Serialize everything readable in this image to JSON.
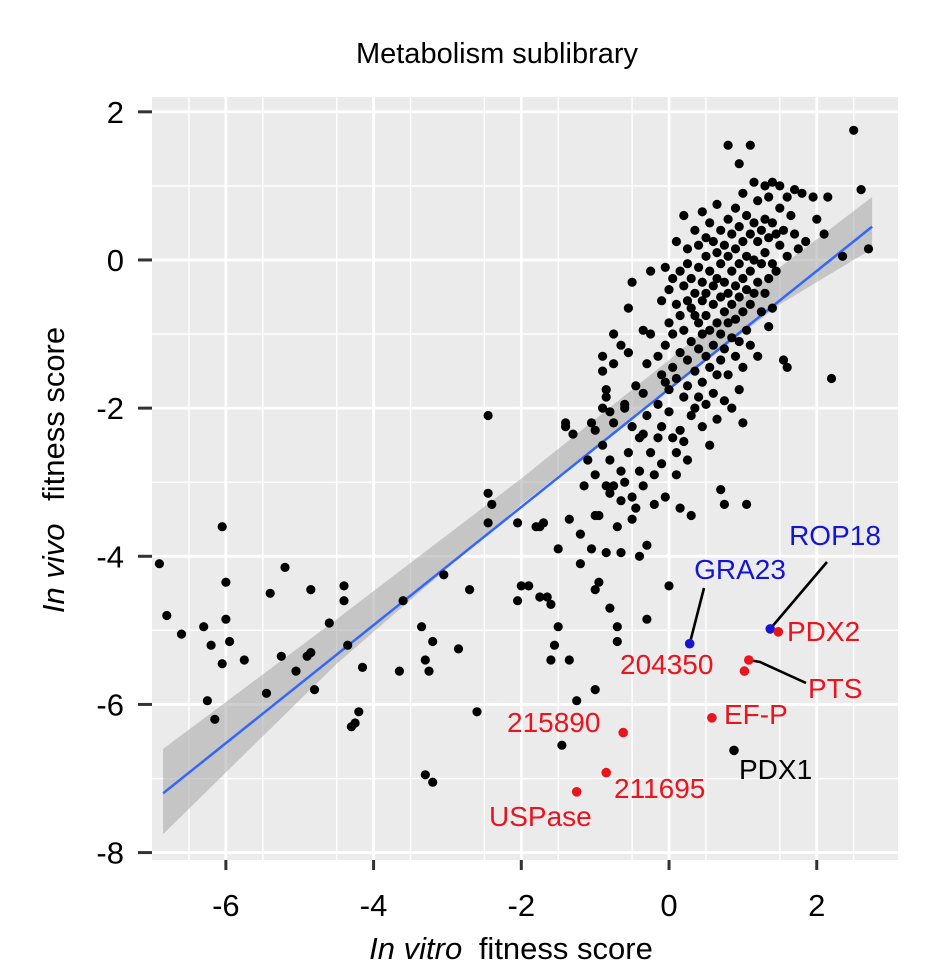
{
  "chart_data": {
    "type": "scatter",
    "title": "Metabolism sublibrary",
    "xlabel": {
      "italic": "In vitro",
      "rest": "fitness score"
    },
    "ylabel": {
      "italic": "In vivo",
      "rest": "fitness score"
    },
    "xlim": [
      -7,
      3.1
    ],
    "ylim": [
      -8.1,
      2.2
    ],
    "xticks": [
      -6,
      -4,
      -2,
      0,
      2
    ],
    "xtick_labels": [
      "-6",
      "-4",
      "-2",
      "0",
      "2"
    ],
    "yticks": [
      2,
      0,
      -2,
      -4,
      -6,
      -8
    ],
    "ytick_labels": [
      "2",
      "0",
      "-2",
      "-4",
      "-6",
      "-8"
    ],
    "grid": true,
    "colors": {
      "panel": "#ebebeb",
      "grid": "#ffffff",
      "points": "#000000",
      "fit": "#3366ff",
      "ribbon": "#a6a6a6",
      "red": "#e8141e",
      "blue": "#1414d2"
    },
    "fit_line": {
      "x": [
        -6.85,
        2.75
      ],
      "y": [
        -7.2,
        0.45
      ],
      "ribbon": [
        [
          -6.85,
          -7.75,
          -6.6
        ],
        [
          -4.5,
          -5.45,
          -4.85
        ],
        [
          -2.0,
          -3.3,
          -2.95
        ],
        [
          0.0,
          -1.75,
          -1.35
        ],
        [
          1.5,
          -0.6,
          -0.1
        ],
        [
          2.75,
          0.15,
          0.85
        ]
      ]
    },
    "points": [
      [
        -6.9,
        -4.1
      ],
      [
        -6.8,
        -4.8
      ],
      [
        -6.6,
        -5.05
      ],
      [
        -6.3,
        -4.95
      ],
      [
        -6.25,
        -5.95
      ],
      [
        -6.2,
        -5.2
      ],
      [
        -6.15,
        -6.2
      ],
      [
        -6.05,
        -3.6
      ],
      [
        -6.05,
        -5.45
      ],
      [
        -6.0,
        -4.35
      ],
      [
        -6.0,
        -4.85
      ],
      [
        -5.95,
        -5.15
      ],
      [
        -5.75,
        -5.4
      ],
      [
        -5.45,
        -5.85
      ],
      [
        -5.4,
        -4.5
      ],
      [
        -5.2,
        -4.15
      ],
      [
        -5.25,
        -5.35
      ],
      [
        -5.05,
        -5.55
      ],
      [
        -4.9,
        -5.35
      ],
      [
        -4.85,
        -5.3
      ],
      [
        -4.85,
        -4.45
      ],
      [
        -4.8,
        -5.8
      ],
      [
        -4.6,
        -4.9
      ],
      [
        -4.4,
        -4.4
      ],
      [
        -4.4,
        -4.6
      ],
      [
        -4.35,
        -5.2
      ],
      [
        -4.3,
        -6.3
      ],
      [
        -4.25,
        -6.25
      ],
      [
        -4.2,
        -6.1
      ],
      [
        -4.15,
        -5.5
      ],
      [
        -3.65,
        -5.55
      ],
      [
        -3.6,
        -4.6
      ],
      [
        -3.35,
        -4.95
      ],
      [
        -3.3,
        -5.4
      ],
      [
        -3.3,
        -6.95
      ],
      [
        -3.25,
        -5.55
      ],
      [
        -3.2,
        -7.05
      ],
      [
        -3.2,
        -5.15
      ],
      [
        -3.05,
        -4.25
      ],
      [
        -2.85,
        -5.25
      ],
      [
        -2.7,
        -4.45
      ],
      [
        -2.6,
        -6.1
      ],
      [
        -2.45,
        -2.1
      ],
      [
        -2.45,
        -3.15
      ],
      [
        -2.45,
        -3.55
      ],
      [
        -2.4,
        -3.3
      ],
      [
        -2.05,
        -4.6
      ],
      [
        -2.05,
        -3.55
      ],
      [
        -2.0,
        -4.4
      ],
      [
        -1.9,
        -4.4
      ],
      [
        -1.8,
        -3.6
      ],
      [
        -1.75,
        -3.6
      ],
      [
        -1.75,
        -4.55
      ],
      [
        -1.7,
        -3.55
      ],
      [
        -1.65,
        -4.55
      ],
      [
        -1.6,
        -5.4
      ],
      [
        -1.6,
        -4.65
      ],
      [
        -1.55,
        -5.2
      ],
      [
        -1.5,
        -4.95
      ],
      [
        -1.5,
        -3.9
      ],
      [
        -1.45,
        -6.55
      ],
      [
        -1.4,
        -2.2
      ],
      [
        -1.4,
        -2.25
      ],
      [
        -1.35,
        -5.4
      ],
      [
        -1.35,
        -3.5
      ],
      [
        -1.3,
        -2.35
      ],
      [
        -1.25,
        -5.95
      ],
      [
        -1.2,
        -3.7
      ],
      [
        -1.2,
        -4.1
      ],
      [
        -1.15,
        -3.05
      ],
      [
        -1.1,
        -2.7
      ],
      [
        -1.05,
        -2.2
      ],
      [
        -1.05,
        -3.9
      ],
      [
        -1.0,
        -2.3
      ],
      [
        -1.0,
        -2.9
      ],
      [
        -1.0,
        -3.45
      ],
      [
        -1.0,
        -5.8
      ],
      [
        -1.0,
        -4.45
      ],
      [
        -0.95,
        -3.45
      ],
      [
        -0.95,
        -4.35
      ],
      [
        -0.9,
        -1.3
      ],
      [
        -0.9,
        -1.5
      ],
      [
        -0.9,
        -2.0
      ],
      [
        -0.9,
        -2.5
      ],
      [
        -0.85,
        -3.05
      ],
      [
        -0.85,
        -3.95
      ],
      [
        -0.85,
        -1.75
      ],
      [
        -0.85,
        -1.85
      ],
      [
        -0.8,
        -2.05
      ],
      [
        -0.8,
        -2.7
      ],
      [
        -0.8,
        -3.15
      ],
      [
        -0.8,
        -4.7
      ],
      [
        -0.75,
        -1.0
      ],
      [
        -0.75,
        -1.4
      ],
      [
        -0.75,
        -2.2
      ],
      [
        -0.75,
        -3.05
      ],
      [
        -0.7,
        -3.6
      ],
      [
        -0.7,
        -4.95
      ],
      [
        -0.7,
        -5.15
      ],
      [
        -0.65,
        -1.15
      ],
      [
        -0.65,
        -2.85
      ],
      [
        -0.65,
        -3.25
      ],
      [
        -0.65,
        -3.95
      ],
      [
        -0.6,
        -2.0
      ],
      [
        -0.6,
        -3.0
      ],
      [
        -0.6,
        -1.95
      ],
      [
        -0.55,
        -0.65
      ],
      [
        -0.55,
        -1.25
      ],
      [
        -0.55,
        -2.6
      ],
      [
        -0.5,
        -3.2
      ],
      [
        -0.5,
        -3.5
      ],
      [
        -0.5,
        -0.3
      ],
      [
        -0.5,
        -2.25
      ],
      [
        -0.45,
        -1.7
      ],
      [
        -0.45,
        -3.35
      ],
      [
        -0.4,
        -2.4
      ],
      [
        -0.4,
        -2.85
      ],
      [
        -0.4,
        -4.0
      ],
      [
        -0.35,
        -0.95
      ],
      [
        -0.35,
        -1.8
      ],
      [
        -0.35,
        -2.35
      ],
      [
        -0.35,
        -3.05
      ],
      [
        -0.3,
        -4.85
      ],
      [
        -0.3,
        -1.4
      ],
      [
        -0.3,
        -2.1
      ],
      [
        -0.3,
        -3.85
      ],
      [
        -0.25,
        -1.0
      ],
      [
        -0.25,
        -2.6
      ],
      [
        -0.25,
        -0.15
      ],
      [
        -0.2,
        -2.9
      ],
      [
        -0.2,
        -3.3
      ],
      [
        -0.15,
        -1.3
      ],
      [
        -0.15,
        -2.4
      ],
      [
        -0.15,
        -1.95
      ],
      [
        -0.1,
        -0.55
      ],
      [
        -0.1,
        -1.55
      ],
      [
        -0.1,
        -2.25
      ],
      [
        -0.1,
        -2.75
      ],
      [
        -0.05,
        -0.1
      ],
      [
        -0.05,
        -1.15
      ],
      [
        -0.05,
        -1.65
      ],
      [
        -0.05,
        -3.2
      ],
      [
        0.0,
        -0.4
      ],
      [
        0.0,
        -0.85
      ],
      [
        0.0,
        -1.75
      ],
      [
        0.0,
        -2.05
      ],
      [
        0.0,
        -4.4
      ],
      [
        0.05,
        -0.25
      ],
      [
        0.05,
        -1.0
      ],
      [
        0.05,
        -1.45
      ],
      [
        0.05,
        -2.4
      ],
      [
        0.1,
        0.25
      ],
      [
        0.1,
        -0.6
      ],
      [
        0.1,
        -1.6
      ],
      [
        0.1,
        -2.6
      ],
      [
        0.1,
        -2.9
      ],
      [
        0.15,
        -0.15
      ],
      [
        0.15,
        -0.75
      ],
      [
        0.15,
        -1.25
      ],
      [
        0.15,
        -2.3
      ],
      [
        0.15,
        -3.35
      ],
      [
        0.2,
        0.6
      ],
      [
        0.2,
        -0.35
      ],
      [
        0.2,
        -0.95
      ],
      [
        0.2,
        -1.85
      ],
      [
        0.2,
        -2.45
      ],
      [
        0.25,
        0.15
      ],
      [
        0.25,
        -0.05
      ],
      [
        0.25,
        -0.55
      ],
      [
        0.25,
        -1.35
      ],
      [
        0.25,
        -1.7
      ],
      [
        0.25,
        -2.7
      ],
      [
        0.3,
        -0.25
      ],
      [
        0.3,
        -0.65
      ],
      [
        0.3,
        -1.1
      ],
      [
        0.3,
        -2.1
      ],
      [
        0.3,
        -3.45
      ],
      [
        0.35,
        0.4
      ],
      [
        0.35,
        -0.45
      ],
      [
        0.35,
        -0.75
      ],
      [
        0.35,
        -1.5
      ],
      [
        0.35,
        -2.0
      ],
      [
        0.4,
        0.2
      ],
      [
        0.4,
        -0.1
      ],
      [
        0.4,
        -0.85
      ],
      [
        0.4,
        -1.2
      ],
      [
        0.4,
        -1.85
      ],
      [
        0.45,
        0.65
      ],
      [
        0.45,
        -0.3
      ],
      [
        0.45,
        -0.55
      ],
      [
        0.45,
        -1.0
      ],
      [
        0.45,
        -1.65
      ],
      [
        0.45,
        -2.25
      ],
      [
        0.5,
        0.05
      ],
      [
        0.5,
        0.3
      ],
      [
        0.5,
        -0.45
      ],
      [
        0.5,
        -0.75
      ],
      [
        0.5,
        -1.3
      ],
      [
        0.5,
        -1.95
      ],
      [
        0.55,
        0.5
      ],
      [
        0.55,
        -0.15
      ],
      [
        0.55,
        -0.95
      ],
      [
        0.55,
        -1.45
      ],
      [
        0.55,
        -2.5
      ],
      [
        0.6,
        0.25
      ],
      [
        0.6,
        -0.35
      ],
      [
        0.6,
        -0.6
      ],
      [
        0.6,
        -1.15
      ],
      [
        0.6,
        -1.8
      ],
      [
        0.65,
        0.75
      ],
      [
        0.65,
        0.1
      ],
      [
        0.65,
        -0.25
      ],
      [
        0.65,
        -0.85
      ],
      [
        0.65,
        -1.55
      ],
      [
        0.65,
        -2.15
      ],
      [
        0.7,
        0.4
      ],
      [
        0.7,
        -0.05
      ],
      [
        0.7,
        -0.5
      ],
      [
        0.7,
        -1.0
      ],
      [
        0.7,
        -1.35
      ],
      [
        0.7,
        -3.1
      ],
      [
        0.75,
        0.2
      ],
      [
        0.75,
        -0.3
      ],
      [
        0.75,
        -0.7
      ],
      [
        0.75,
        -1.2
      ],
      [
        0.75,
        -1.9
      ],
      [
        0.75,
        -3.3
      ],
      [
        0.8,
        1.55
      ],
      [
        0.8,
        0.55
      ],
      [
        0.8,
        0.05
      ],
      [
        0.8,
        -0.45
      ],
      [
        0.8,
        -0.85
      ],
      [
        0.8,
        -1.55
      ],
      [
        0.85,
        0.35
      ],
      [
        0.85,
        -0.15
      ],
      [
        0.85,
        -0.6
      ],
      [
        0.85,
        -1.05
      ],
      [
        0.85,
        -2.0
      ],
      [
        0.9,
        0.7
      ],
      [
        0.9,
        0.15
      ],
      [
        0.9,
        -0.35
      ],
      [
        0.9,
        -0.8
      ],
      [
        0.9,
        -1.3
      ],
      [
        0.95,
        1.3
      ],
      [
        0.95,
        0.45
      ],
      [
        0.95,
        -0.05
      ],
      [
        0.95,
        -0.5
      ],
      [
        0.95,
        -1.1
      ],
      [
        0.95,
        -1.75
      ],
      [
        1.0,
        0.9
      ],
      [
        1.0,
        0.25
      ],
      [
        1.0,
        -0.25
      ],
      [
        1.0,
        -0.7
      ],
      [
        1.0,
        -1.45
      ],
      [
        1.0,
        -2.2
      ],
      [
        1.05,
        0.6
      ],
      [
        1.05,
        0.05
      ],
      [
        1.05,
        -0.4
      ],
      [
        1.05,
        -0.95
      ],
      [
        1.05,
        -3.3
      ],
      [
        1.1,
        1.55
      ],
      [
        1.1,
        0.35
      ],
      [
        1.1,
        -0.15
      ],
      [
        1.1,
        -0.6
      ],
      [
        1.1,
        -1.15
      ],
      [
        1.15,
        1.05
      ],
      [
        1.15,
        0.5
      ],
      [
        1.15,
        0.0
      ],
      [
        1.15,
        -0.45
      ],
      [
        1.2,
        0.8
      ],
      [
        1.2,
        0.25
      ],
      [
        1.2,
        -0.3
      ],
      [
        1.2,
        -1.3
      ],
      [
        1.25,
        0.4
      ],
      [
        1.25,
        -0.05
      ],
      [
        1.25,
        -0.7
      ],
      [
        1.3,
        1.0
      ],
      [
        1.3,
        0.55
      ],
      [
        1.3,
        0.1
      ],
      [
        1.3,
        -0.45
      ],
      [
        1.35,
        0.85
      ],
      [
        1.35,
        0.3
      ],
      [
        1.35,
        -0.25
      ],
      [
        1.35,
        -0.9
      ],
      [
        1.4,
        1.05
      ],
      [
        1.4,
        0.5
      ],
      [
        1.4,
        -0.05
      ],
      [
        1.4,
        -0.65
      ],
      [
        1.45,
        0.35
      ],
      [
        1.45,
        -0.15
      ],
      [
        1.5,
        1.0
      ],
      [
        1.5,
        0.7
      ],
      [
        1.5,
        0.2
      ],
      [
        1.55,
        0.4
      ],
      [
        1.55,
        -1.35
      ],
      [
        1.6,
        0.85
      ],
      [
        1.6,
        0.05
      ],
      [
        1.6,
        -1.45
      ],
      [
        1.65,
        0.6
      ],
      [
        1.7,
        0.95
      ],
      [
        1.7,
        0.35
      ],
      [
        1.75,
        0.15
      ],
      [
        1.8,
        0.9
      ],
      [
        1.85,
        0.25
      ],
      [
        1.95,
        0.85
      ],
      [
        2.0,
        0.55
      ],
      [
        2.1,
        0.35
      ],
      [
        2.15,
        0.85
      ],
      [
        2.2,
        -1.6
      ],
      [
        2.35,
        0.05
      ],
      [
        2.5,
        1.75
      ],
      [
        2.6,
        0.95
      ],
      [
        2.7,
        0.15
      ]
    ],
    "highlighted_points": [
      {
        "name": "ROP18",
        "x": 1.37,
        "y": -4.98,
        "color": "blue"
      },
      {
        "name": "GRA23",
        "x": 0.28,
        "y": -5.18,
        "color": "blue"
      },
      {
        "name": "PDX2",
        "x": 1.48,
        "y": -5.02,
        "color": "red"
      },
      {
        "name": "204350",
        "x": 1.08,
        "y": -5.4,
        "color": "red"
      },
      {
        "name": "PTS",
        "x": 1.02,
        "y": -5.55,
        "color": "red"
      },
      {
        "name": "EF-P",
        "x": 0.58,
        "y": -6.18,
        "color": "red"
      },
      {
        "name": "215890",
        "x": -0.62,
        "y": -6.38,
        "color": "red"
      },
      {
        "name": "211695",
        "x": -0.85,
        "y": -6.92,
        "color": "red"
      },
      {
        "name": "USPase",
        "x": -1.25,
        "y": -7.18,
        "color": "red"
      },
      {
        "name": "PDX1",
        "x": 0.88,
        "y": -6.62,
        "color": "black"
      }
    ],
    "annotations": [
      {
        "text": "ROP18",
        "color": "blue"
      },
      {
        "text": "GRA23",
        "color": "blue"
      },
      {
        "text": "PDX2",
        "color": "red"
      },
      {
        "text": "204350",
        "color": "red"
      },
      {
        "text": "PTS",
        "color": "red"
      },
      {
        "text": "EF-P",
        "color": "red"
      },
      {
        "text": "215890",
        "color": "red"
      },
      {
        "text": "211695",
        "color": "red"
      },
      {
        "text": "USPase",
        "color": "red"
      },
      {
        "text": "PDX1",
        "color": "black"
      }
    ]
  }
}
